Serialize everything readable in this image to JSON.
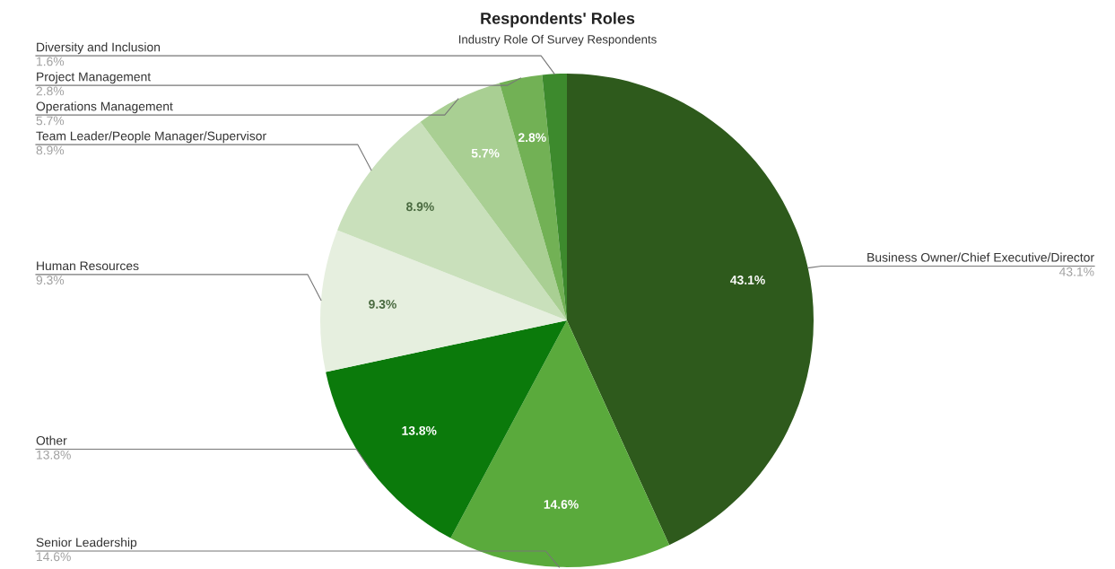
{
  "chart_data": {
    "type": "pie",
    "title": "Respondents' Roles",
    "subtitle": "Industry Role Of Survey Respondents",
    "categories": [
      "Business Owner/Chief Executive/Director",
      "Senior Leadership",
      "Other",
      "Human Resources",
      "Team Leader/People Manager/Supervisor",
      "Operations Management",
      "Project Management",
      "Diversity and Inclusion"
    ],
    "values": [
      43.1,
      14.6,
      13.8,
      9.3,
      8.9,
      5.7,
      2.8,
      1.6
    ],
    "colors": [
      "#2e5a1c",
      "#5aaa3c",
      "#0b7a0b",
      "#e6efdf",
      "#c9e0bb",
      "#a9cf93",
      "#72b155",
      "#3d8a2d"
    ],
    "value_labels": [
      "43.1%",
      "14.6%",
      "13.8%",
      "9.3%",
      "8.9%",
      "5.7%",
      "2.8%",
      "1.6%"
    ],
    "annotations": [
      "43.1%",
      "14.6%",
      "13.8%",
      "9.3%",
      "8.9%",
      "5.7%",
      "2.8%"
    ],
    "legend": false
  }
}
